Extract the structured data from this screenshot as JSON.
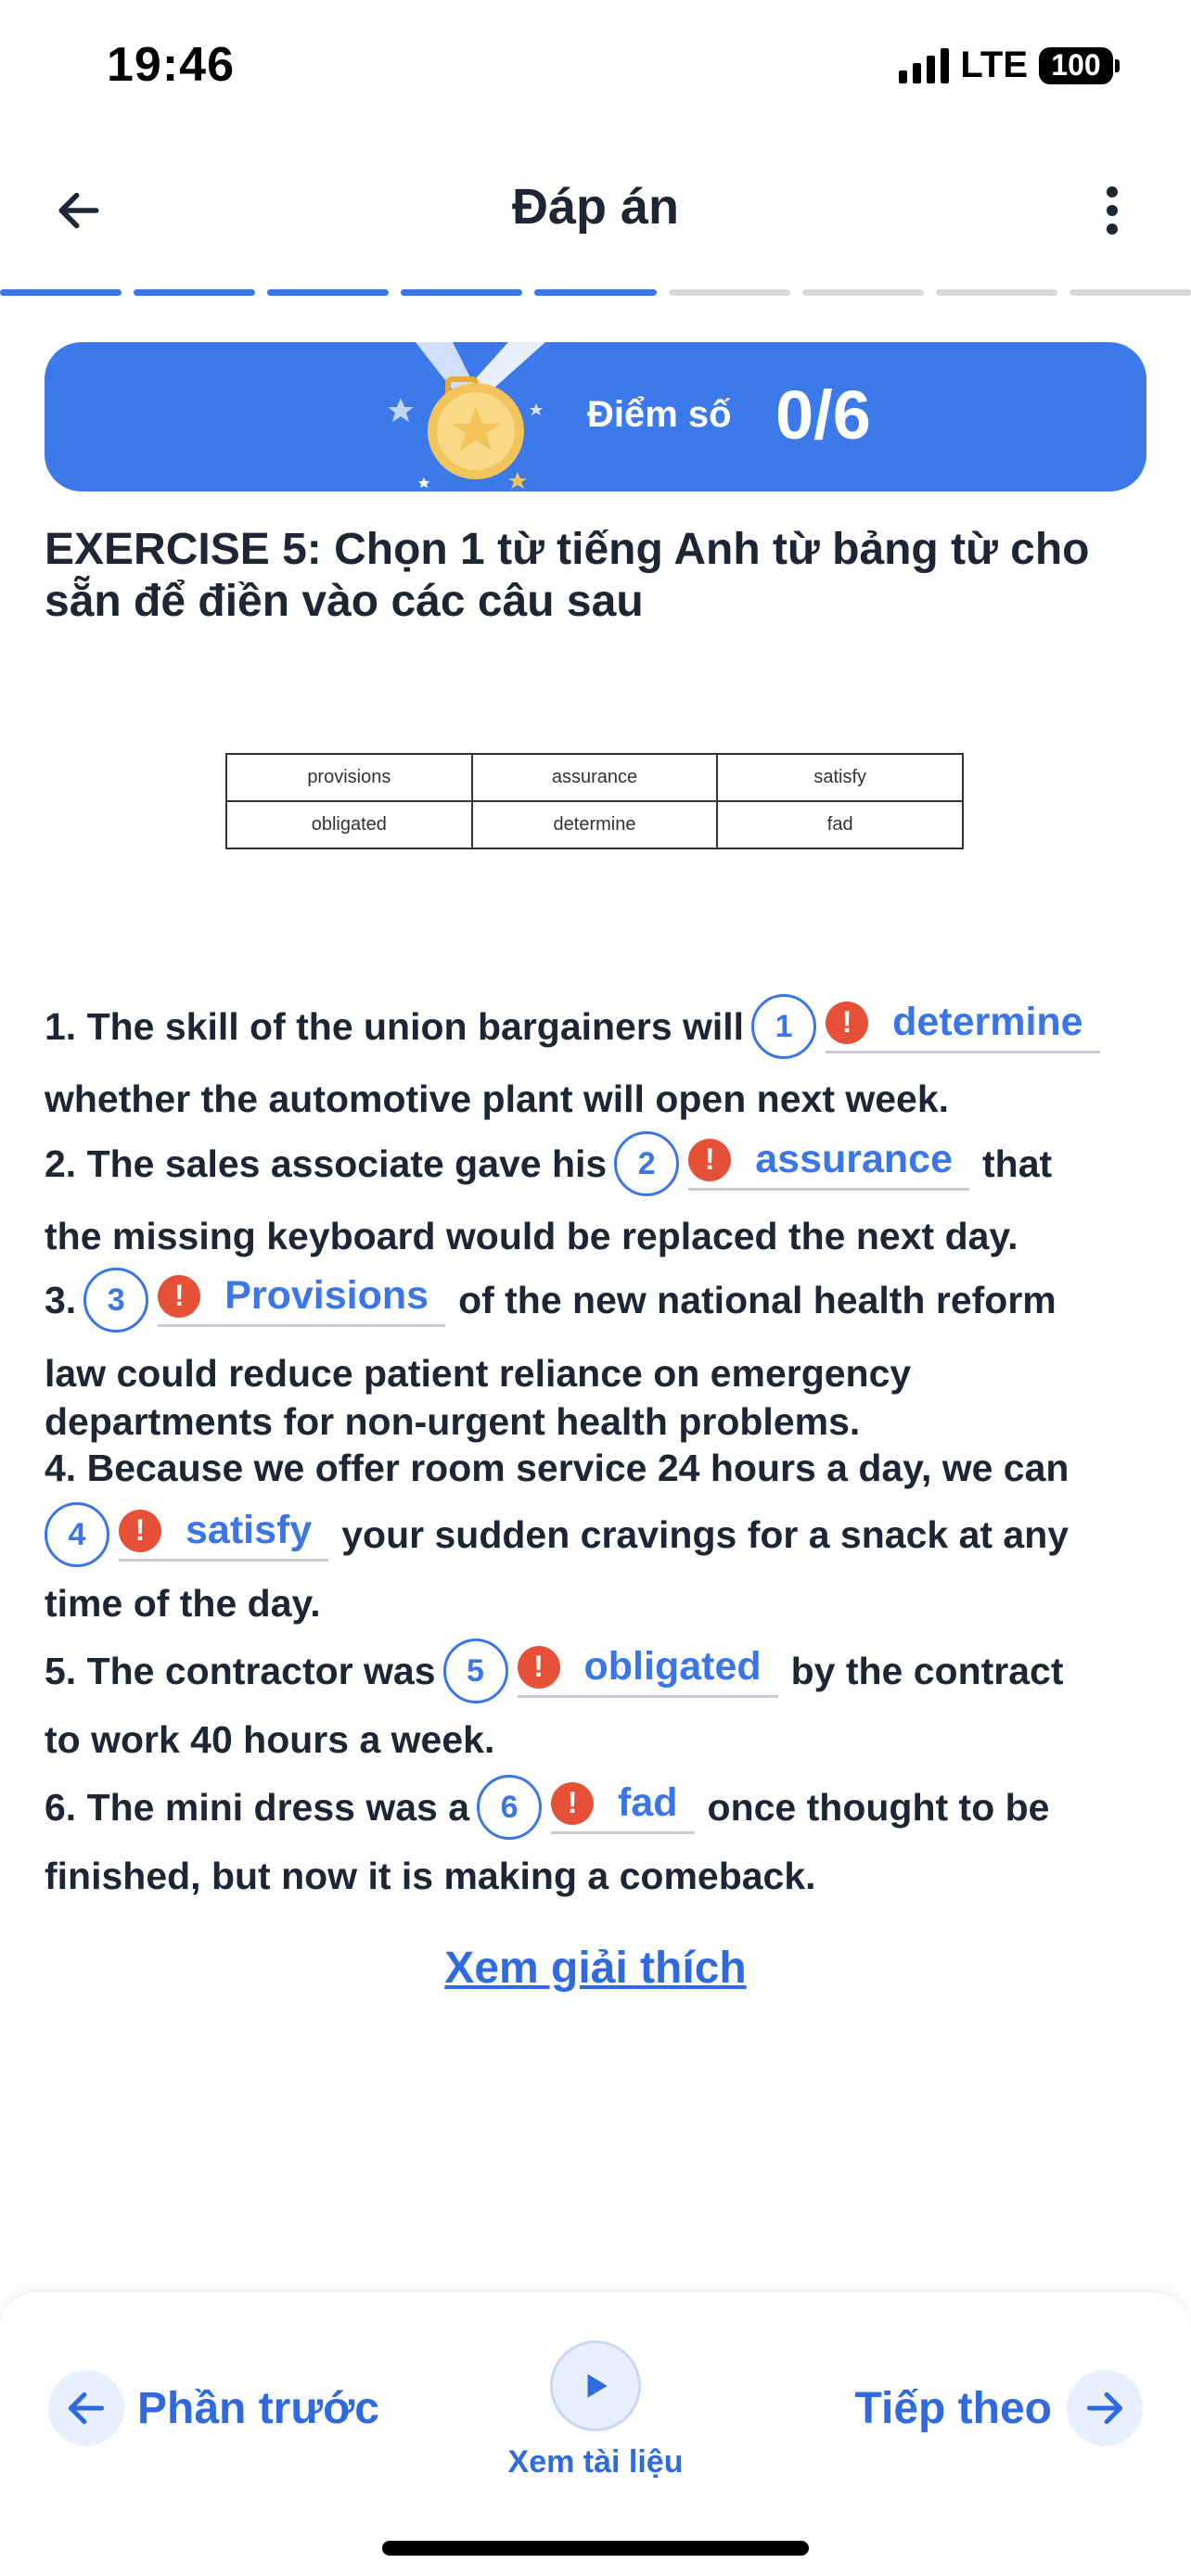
{
  "status_bar": {
    "time": "19:46",
    "network": "LTE",
    "battery": "100"
  },
  "header": {
    "title": "Đáp án"
  },
  "progress": {
    "total_sections": 9,
    "completed_sections": 5
  },
  "score": {
    "label": "Điểm số",
    "value": "0/6"
  },
  "exercise": {
    "title": "EXERCISE 5: Chọn 1 từ tiếng Anh từ bảng từ cho sẵn để điền vào các câu sau",
    "word_bank": [
      [
        "provisions",
        "assurance",
        "satisfy"
      ],
      [
        "obligated",
        "determine",
        "fad"
      ]
    ]
  },
  "questions": {
    "q1": {
      "number": "1",
      "before": "1. The skill of the union bargainers will",
      "answer": "determine",
      "after": "",
      "continuation": "whether the automotive plant will open next week."
    },
    "q2": {
      "number": "2",
      "before": "2. The sales associate gave his",
      "answer": "assurance",
      "after": "that",
      "continuation": "the missing keyboard would be replaced the next day."
    },
    "q3": {
      "number": "3",
      "before": "3.",
      "answer": "Provisions",
      "after": "of the new national health reform",
      "continuation": "law could reduce patient reliance on emergency",
      "continuation2": "departments for non-urgent health problems."
    },
    "q4": {
      "number": "4",
      "before": "4. Because we offer room service 24 hours a day, we can",
      "answer": "satisfy",
      "after": "your sudden cravings for a snack at any",
      "continuation": "time of the day."
    },
    "q5": {
      "number": "5",
      "before": "5. The contractor was",
      "answer": "obligated",
      "after": "by the contract",
      "continuation": "to work 40 hours a week."
    },
    "q6": {
      "number": "6",
      "before": "6. The mini dress was a",
      "answer": "fad",
      "after": "once thought to be",
      "continuation": "finished, but now it is making a comeback."
    }
  },
  "explain_link": "Xem giải thích",
  "bottom_nav": {
    "prev_label": "Phần trước",
    "doc_label": "Xem tài liệu",
    "next_label": "Tiếp theo"
  },
  "colors": {
    "accent": "#3b76e8",
    "error": "#e55036",
    "banner": "#3b7ae8",
    "text": "#1e2535"
  },
  "icons": {
    "back": "arrow-left-icon",
    "menu": "more-vertical-icon",
    "medal": "medal-icon",
    "error": "exclamation-icon",
    "play": "play-icon",
    "next": "arrow-right-icon"
  }
}
